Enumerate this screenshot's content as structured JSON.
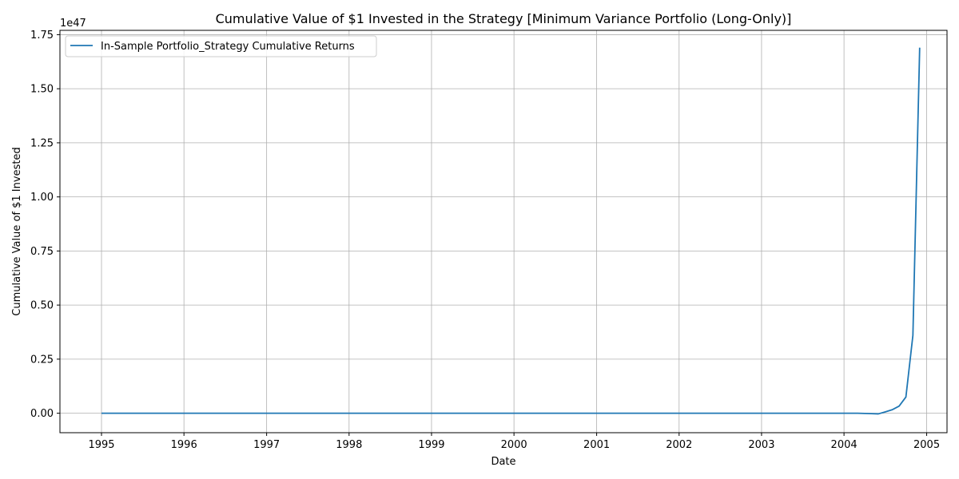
{
  "chart_data": {
    "type": "line",
    "title": "Cumulative Value of $1 Invested in the Strategy [Minimum Variance Portfolio (Long-Only)]",
    "xlabel": "Date",
    "ylabel": "Cumulative Value of $1 Invested",
    "y_offset_label": "1e47",
    "y_multiplier": 1e+47,
    "xlim": [
      "1994-07-01",
      "2005-04-01"
    ],
    "ylim": [
      -0.09,
      1.77
    ],
    "x_ticks": [
      "1995",
      "1996",
      "1997",
      "1998",
      "1999",
      "2000",
      "2001",
      "2002",
      "2003",
      "2004",
      "2005"
    ],
    "y_ticks": [
      "0.00",
      "0.25",
      "0.50",
      "0.75",
      "1.00",
      "1.25",
      "1.50",
      "1.75"
    ],
    "grid": true,
    "legend_position": "top-left",
    "series": [
      {
        "name": "In-Sample Portfolio_Strategy Cumulative Returns",
        "color": "#1f77b4",
        "points": [
          {
            "x": "1995-01-01",
            "y": 0.0
          },
          {
            "x": "1996-01-01",
            "y": 0.0
          },
          {
            "x": "1997-01-01",
            "y": 0.0
          },
          {
            "x": "1998-01-01",
            "y": 0.0
          },
          {
            "x": "1999-01-01",
            "y": 0.0
          },
          {
            "x": "2000-01-01",
            "y": 0.0
          },
          {
            "x": "2001-01-01",
            "y": 0.0
          },
          {
            "x": "2002-01-01",
            "y": 0.0
          },
          {
            "x": "2003-01-01",
            "y": 0.0
          },
          {
            "x": "2004-01-01",
            "y": 0.0
          },
          {
            "x": "2004-03-01",
            "y": 0.0
          },
          {
            "x": "2004-05-01",
            "y": -0.002
          },
          {
            "x": "2004-06-01",
            "y": -0.003
          },
          {
            "x": "2004-07-01",
            "y": 0.006
          },
          {
            "x": "2004-08-01",
            "y": 0.016
          },
          {
            "x": "2004-09-01",
            "y": 0.033
          },
          {
            "x": "2004-10-01",
            "y": 0.075
          },
          {
            "x": "2004-11-01",
            "y": 0.36
          },
          {
            "x": "2004-12-01",
            "y": 1.69
          }
        ]
      }
    ]
  }
}
